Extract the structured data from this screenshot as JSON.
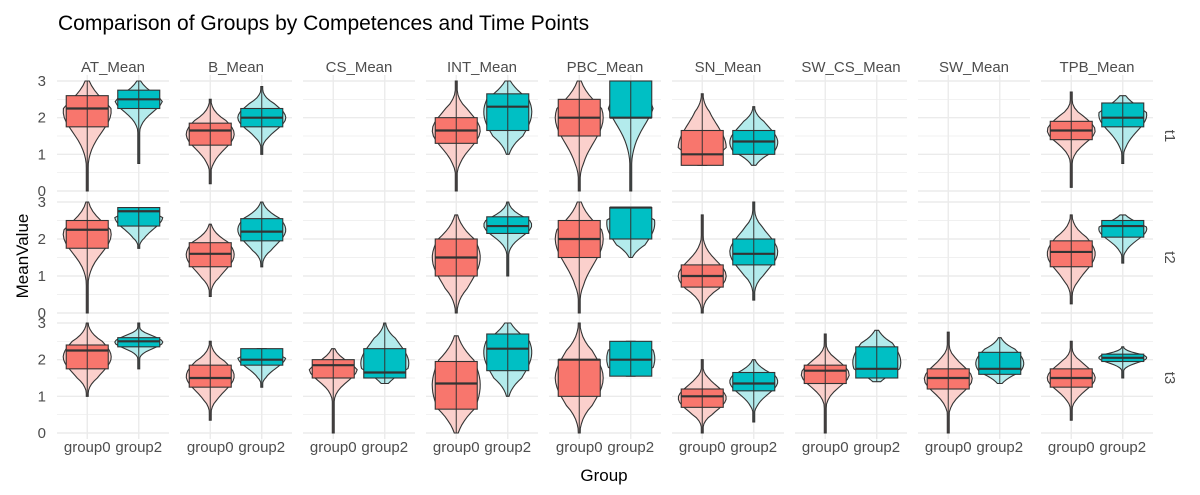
{
  "chart_data": {
    "type": "violin+box",
    "title": "Comparison of Groups by Competences and Time Points",
    "xlabel": "Group",
    "ylabel": "MeanValue",
    "ylim": [
      0,
      3
    ],
    "y_ticks": [
      "0",
      "1",
      "2",
      "3"
    ],
    "categories": [
      "group0",
      "group2"
    ],
    "facet_columns": [
      "AT_Mean",
      "B_Mean",
      "CS_Mean",
      "INT_Mean",
      "PBC_Mean",
      "SN_Mean",
      "SW_CS_Mean",
      "SW_Mean",
      "TPB_Mean"
    ],
    "facet_rows": [
      "t1",
      "t2",
      "t3"
    ],
    "colors": {
      "group0": "#F8766D",
      "group0_violin": "#FBD0CC",
      "group2": "#00BFC4",
      "group2_violin": "#B3EBEC",
      "outline": "#333333",
      "grid": "#EBEBEB"
    },
    "grid": true,
    "legend": "none",
    "panels": {
      "t1": {
        "AT_Mean": {
          "group0": {
            "q1": 1.75,
            "median": 2.25,
            "q3": 2.6,
            "min": 0,
            "max": 3
          },
          "group2": {
            "q1": 2.25,
            "median": 2.5,
            "q3": 2.75,
            "min": 0.75,
            "max": 3
          }
        },
        "B_Mean": {
          "group0": {
            "q1": 1.25,
            "median": 1.65,
            "q3": 1.85,
            "min": 0.2,
            "max": 2.5
          },
          "group2": {
            "q1": 1.75,
            "median": 2.0,
            "q3": 2.25,
            "min": 1.0,
            "max": 2.85
          }
        },
        "INT_Mean": {
          "group0": {
            "q1": 1.3,
            "median": 1.65,
            "q3": 2.0,
            "min": 0,
            "max": 3
          },
          "group2": {
            "q1": 1.65,
            "median": 2.3,
            "q3": 2.65,
            "min": 1.0,
            "max": 3
          }
        },
        "PBC_Mean": {
          "group0": {
            "q1": 1.5,
            "median": 2.0,
            "q3": 2.5,
            "min": 0,
            "max": 3
          },
          "group2": {
            "q1": 2.0,
            "median": 2.0,
            "q3": 3.0,
            "min": 0,
            "max": 3
          }
        },
        "SN_Mean": {
          "group0": {
            "q1": 0.7,
            "median": 1.0,
            "q3": 1.65,
            "min": 0.7,
            "max": 2.65
          },
          "group2": {
            "q1": 1.0,
            "median": 1.35,
            "q3": 1.65,
            "min": 0.7,
            "max": 2.3
          }
        },
        "TPB_Mean": {
          "group0": {
            "q1": 1.4,
            "median": 1.65,
            "q3": 1.9,
            "min": 0.1,
            "max": 2.7
          },
          "group2": {
            "q1": 1.75,
            "median": 2.0,
            "q3": 2.4,
            "min": 0.75,
            "max": 2.6
          }
        }
      },
      "t2": {
        "AT_Mean": {
          "group0": {
            "q1": 1.75,
            "median": 2.25,
            "q3": 2.5,
            "min": 0,
            "max": 3
          },
          "group2": {
            "q1": 2.35,
            "median": 2.75,
            "q3": 2.85,
            "min": 1.75,
            "max": 2.85
          }
        },
        "B_Mean": {
          "group0": {
            "q1": 1.25,
            "median": 1.6,
            "q3": 1.9,
            "min": 0.45,
            "max": 2.4
          },
          "group2": {
            "q1": 1.95,
            "median": 2.2,
            "q3": 2.55,
            "min": 1.25,
            "max": 3
          }
        },
        "INT_Mean": {
          "group0": {
            "q1": 1.0,
            "median": 1.5,
            "q3": 2.0,
            "min": 0,
            "max": 2.65
          },
          "group2": {
            "q1": 2.15,
            "median": 2.35,
            "q3": 2.6,
            "min": 1.0,
            "max": 3
          }
        },
        "PBC_Mean": {
          "group0": {
            "q1": 1.5,
            "median": 2.0,
            "q3": 2.5,
            "min": 0,
            "max": 3
          },
          "group2": {
            "q1": 2.0,
            "median": 2.85,
            "q3": 2.85,
            "min": 1.5,
            "max": 2.85
          }
        },
        "SN_Mean": {
          "group0": {
            "q1": 0.7,
            "median": 1.0,
            "q3": 1.3,
            "min": 0,
            "max": 2.65
          },
          "group2": {
            "q1": 1.3,
            "median": 1.6,
            "q3": 2.0,
            "min": 0.35,
            "max": 3
          }
        },
        "TPB_Mean": {
          "group0": {
            "q1": 1.25,
            "median": 1.65,
            "q3": 1.95,
            "min": 0.25,
            "max": 2.65
          },
          "group2": {
            "q1": 2.05,
            "median": 2.35,
            "q3": 2.5,
            "min": 1.35,
            "max": 2.65
          }
        }
      },
      "t3": {
        "AT_Mean": {
          "group0": {
            "q1": 1.75,
            "median": 2.25,
            "q3": 2.4,
            "min": 1.0,
            "max": 3
          },
          "group2": {
            "q1": 2.35,
            "median": 2.5,
            "q3": 2.6,
            "min": 1.75,
            "max": 3
          }
        },
        "B_Mean": {
          "group0": {
            "q1": 1.25,
            "median": 1.5,
            "q3": 1.85,
            "min": 0.35,
            "max": 2.5
          },
          "group2": {
            "q1": 1.85,
            "median": 2.0,
            "q3": 2.3,
            "min": 1.25,
            "max": 2.3
          }
        },
        "CS_Mean": {
          "group0": {
            "q1": 1.5,
            "median": 1.85,
            "q3": 2.0,
            "min": 0,
            "max": 2.3
          },
          "group2": {
            "q1": 1.5,
            "median": 1.65,
            "q3": 2.3,
            "min": 1.35,
            "max": 3
          }
        },
        "INT_Mean": {
          "group0": {
            "q1": 0.65,
            "median": 1.35,
            "q3": 1.95,
            "min": 0,
            "max": 2.65
          },
          "group2": {
            "q1": 1.7,
            "median": 2.3,
            "q3": 2.7,
            "min": 1.0,
            "max": 3
          }
        },
        "PBC_Mean": {
          "group0": {
            "q1": 1.0,
            "median": 2.0,
            "q3": 2.0,
            "min": 0,
            "max": 3
          },
          "group2": {
            "q1": 1.55,
            "median": 2.0,
            "q3": 2.5,
            "min": 1.55,
            "max": 2.5
          }
        },
        "SN_Mean": {
          "group0": {
            "q1": 0.7,
            "median": 1.0,
            "q3": 1.2,
            "min": 0,
            "max": 2.0
          },
          "group2": {
            "q1": 1.15,
            "median": 1.35,
            "q3": 1.65,
            "min": 0.3,
            "max": 2.0
          }
        },
        "SW_CS_Mean": {
          "group0": {
            "q1": 1.35,
            "median": 1.7,
            "q3": 1.85,
            "min": 0,
            "max": 2.7
          },
          "group2": {
            "q1": 1.5,
            "median": 1.75,
            "q3": 2.35,
            "min": 1.4,
            "max": 2.8
          }
        },
        "SW_Mean": {
          "group0": {
            "q1": 1.2,
            "median": 1.5,
            "q3": 1.75,
            "min": 0,
            "max": 2.75
          },
          "group2": {
            "q1": 1.6,
            "median": 1.75,
            "q3": 2.2,
            "min": 1.35,
            "max": 2.6
          }
        },
        "TPB_Mean": {
          "group0": {
            "q1": 1.25,
            "median": 1.5,
            "q3": 1.75,
            "min": 0.35,
            "max": 2.5
          },
          "group2": {
            "q1": 1.95,
            "median": 2.05,
            "q3": 2.15,
            "min": 1.5,
            "max": 2.35
          }
        }
      }
    }
  }
}
